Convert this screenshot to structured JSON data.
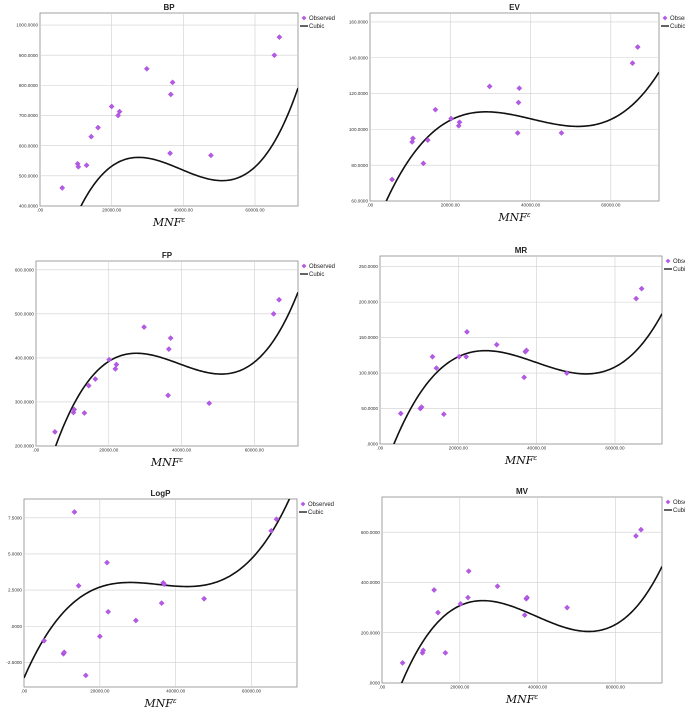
{
  "chart_data": [
    {
      "type": "scatter",
      "title": "BP",
      "xlabel": "MNF",
      "xlabel_sup": "ε",
      "legend": {
        "placement": "top-right",
        "observed": "Observed",
        "fit": "Cubic"
      },
      "xlim": [
        0,
        72000
      ],
      "ylim": [
        400,
        1040
      ],
      "xticks": [
        0,
        20000,
        40000,
        60000
      ],
      "xtick_labels": [
        ".00",
        "20000.00",
        "40000.00",
        "60000.00"
      ],
      "yticks": [
        400,
        500,
        600,
        700,
        800,
        900,
        1000
      ],
      "ytick_labels": [
        "400.0000",
        "500.0000",
        "600.0000",
        "700.0000",
        "800.0000",
        "900.0000",
        "1000.0000"
      ],
      "points": [
        [
          6200,
          460
        ],
        [
          10500,
          540
        ],
        [
          10700,
          530
        ],
        [
          13000,
          535
        ],
        [
          14300,
          630
        ],
        [
          16200,
          660
        ],
        [
          20000,
          730
        ],
        [
          21800,
          700
        ],
        [
          22200,
          713
        ],
        [
          29800,
          855
        ],
        [
          36300,
          575
        ],
        [
          36500,
          770
        ],
        [
          37000,
          810
        ],
        [
          47700,
          568
        ],
        [
          65400,
          900
        ],
        [
          66800,
          960
        ]
      ],
      "cubic": [
        -16.88,
        0.05125,
        -1.435e-06,
        1.221e-11
      ]
    },
    {
      "type": "scatter",
      "title": "EV",
      "xlabel": "MNF",
      "xlabel_sup": "ε",
      "legend": {
        "placement": "top-right",
        "observed": "Observed",
        "fit": "Cubic"
      },
      "xlim": [
        0,
        72000
      ],
      "ylim": [
        60,
        165
      ],
      "xticks": [
        0,
        20000,
        40000,
        60000
      ],
      "xtick_labels": [
        ".00",
        "20000.00",
        "40000.00",
        "60000.00"
      ],
      "yticks": [
        60,
        80,
        100,
        120,
        140,
        160
      ],
      "ytick_labels": [
        "60.0000",
        "80.0000",
        "100.0000",
        "120.0000",
        "140.0000",
        "160.0000"
      ],
      "points": [
        [
          5500,
          72
        ],
        [
          10500,
          93
        ],
        [
          10700,
          95
        ],
        [
          13300,
          81
        ],
        [
          14400,
          94
        ],
        [
          16300,
          111
        ],
        [
          20200,
          106
        ],
        [
          22100,
          102
        ],
        [
          22300,
          104
        ],
        [
          29800,
          124
        ],
        [
          36800,
          98
        ],
        [
          37000,
          115
        ],
        [
          37200,
          123
        ],
        [
          47700,
          98
        ],
        [
          65400,
          137
        ],
        [
          66700,
          146
        ]
      ],
      "cubic": [
        37.78,
        0.006118,
        -1.648e-07,
        1.361e-12
      ]
    },
    {
      "type": "scatter",
      "title": "FP",
      "xlabel": "MNF",
      "xlabel_sup": "ε",
      "legend": {
        "placement": "top-right",
        "observed": "Observed",
        "fit": "Cubic"
      },
      "xlim": [
        0,
        72000
      ],
      "ylim": [
        200,
        620
      ],
      "xticks": [
        0,
        20000,
        40000,
        60000
      ],
      "xtick_labels": [
        ".00",
        "20000.00",
        "40000.00",
        "60000.00"
      ],
      "yticks": [
        200,
        300,
        400,
        500,
        600
      ],
      "ytick_labels": [
        "200.0000",
        "300.0000",
        "400.0000",
        "500.0000",
        "600.0000"
      ],
      "points": [
        [
          5200,
          232
        ],
        [
          10300,
          276
        ],
        [
          10500,
          283
        ],
        [
          13300,
          275
        ],
        [
          14500,
          337
        ],
        [
          16300,
          352
        ],
        [
          20100,
          396
        ],
        [
          21800,
          375
        ],
        [
          22100,
          385
        ],
        [
          29700,
          470
        ],
        [
          36300,
          315
        ],
        [
          36500,
          420
        ],
        [
          37000,
          445
        ],
        [
          47600,
          297
        ],
        [
          65300,
          500
        ],
        [
          66800,
          532
        ]
      ],
      "cubic": [
        54.03,
        0.03151,
        -8.797e-07,
        7.466e-12
      ]
    },
    {
      "type": "scatter",
      "title": "MR",
      "xlabel": "MNF",
      "xlabel_sup": "ε",
      "legend": {
        "placement": "top-right",
        "observed": "Observed",
        "fit": "Cubic"
      },
      "xlim": [
        0,
        72000
      ],
      "ylim": [
        0,
        265
      ],
      "xticks": [
        0,
        20000,
        40000,
        60000
      ],
      "xtick_labels": [
        ".00",
        "20000.00",
        "40000.00",
        "60000.00"
      ],
      "yticks": [
        0,
        50,
        100,
        150,
        200,
        250
      ],
      "ytick_labels": [
        ".0000",
        "50.0000",
        "100.0000",
        "150.0000",
        "200.0000",
        "250.0000"
      ],
      "points": [
        [
          5300,
          43
        ],
        [
          10300,
          50
        ],
        [
          10600,
          52
        ],
        [
          13400,
          123
        ],
        [
          14400,
          107
        ],
        [
          16300,
          42
        ],
        [
          20200,
          123
        ],
        [
          22000,
          123
        ],
        [
          22200,
          158
        ],
        [
          29800,
          140
        ],
        [
          36800,
          94
        ],
        [
          37100,
          130
        ],
        [
          37400,
          132
        ],
        [
          47700,
          100
        ],
        [
          65400,
          205
        ],
        [
          66800,
          219
        ]
      ],
      "cubic": [
        -53.01,
        0.01652,
        -4.636e-07,
        3.886e-12
      ]
    },
    {
      "type": "scatter",
      "title": "LogP",
      "xlabel": "MNF",
      "xlabel_sup": "ε",
      "legend": {
        "placement": "top-right",
        "observed": "Observed",
        "fit": "Cubic"
      },
      "xlim": [
        0,
        72000
      ],
      "ylim": [
        -4.2,
        8.8
      ],
      "xticks": [
        0,
        20000,
        40000,
        60000
      ],
      "xtick_labels": [
        ".00",
        "20000.00",
        "40000.00",
        "60000.00"
      ],
      "yticks": [
        -2.5,
        0,
        2.5,
        5,
        7.5
      ],
      "ytick_labels": [
        "-2.5000",
        ".0000",
        "2.5000",
        "5.0000",
        "7.5000"
      ],
      "points": [
        [
          5300,
          -1.0
        ],
        [
          10400,
          -1.9
        ],
        [
          10600,
          -1.8
        ],
        [
          13300,
          7.9
        ],
        [
          14400,
          2.8
        ],
        [
          16300,
          -3.4
        ],
        [
          20000,
          -0.7
        ],
        [
          21900,
          4.4
        ],
        [
          22200,
          1.0
        ],
        [
          29500,
          0.4
        ],
        [
          36300,
          1.6
        ],
        [
          36700,
          3.0
        ],
        [
          37000,
          2.9
        ],
        [
          47500,
          1.9
        ],
        [
          65200,
          6.6
        ],
        [
          66600,
          7.4
        ]
      ],
      "cubic": [
        -3.576,
        0.0006031,
        -1.78e-08,
        1.673e-13
      ]
    },
    {
      "type": "scatter",
      "title": "MV",
      "xlabel": "MNF",
      "xlabel_sup": "ε",
      "legend": {
        "placement": "top-right",
        "observed": "Observed",
        "fit": "Cubic"
      },
      "xlim": [
        0,
        72000
      ],
      "ylim": [
        0,
        740
      ],
      "xticks": [
        0,
        20000,
        40000,
        60000
      ],
      "xtick_labels": [
        ".00",
        "20000.00",
        "40000.00",
        "60000.00"
      ],
      "yticks": [
        0,
        200,
        400,
        600
      ],
      "ytick_labels": [
        ".0000",
        "200.0000",
        "400.0000",
        "600.0000"
      ],
      "points": [
        [
          5300,
          80
        ],
        [
          10400,
          120
        ],
        [
          10600,
          130
        ],
        [
          13400,
          370
        ],
        [
          14400,
          280
        ],
        [
          16300,
          120
        ],
        [
          20200,
          315
        ],
        [
          22100,
          340
        ],
        [
          22300,
          445
        ],
        [
          29700,
          385
        ],
        [
          36700,
          270
        ],
        [
          37100,
          335
        ],
        [
          37300,
          340
        ],
        [
          47600,
          300
        ],
        [
          65300,
          585
        ],
        [
          66600,
          610
        ]
      ],
      "cubic": [
        -219.7,
        0.05041,
        -1.446e-06,
        1.219e-11
      ]
    }
  ]
}
